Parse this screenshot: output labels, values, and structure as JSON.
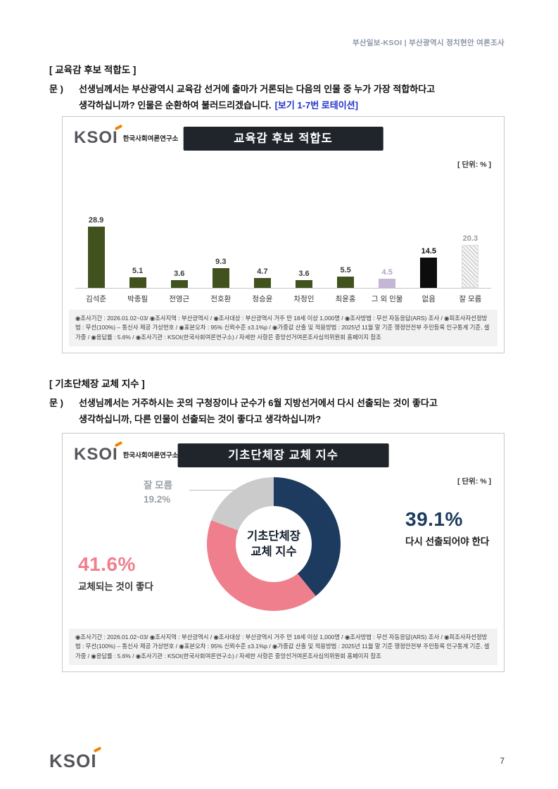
{
  "page": {
    "header": "부산일보-KSOI | 부산광역시 정치현안 여론조사",
    "brand": "KSOI",
    "brand_sub": "한국사회여론연구소",
    "page_number": "7"
  },
  "theme": {
    "bar_green": "#41521f",
    "bar_purple": "#c5b6d6",
    "bar_black": "#0d0d0d",
    "donut_navy": "#1c3b5e",
    "donut_pink": "#f07f8d",
    "donut_gray": "#cbcbcb",
    "accent_orange": "#f08300",
    "title_bar_bg": "#20242b",
    "note_blue": "#2233cc"
  },
  "section1": {
    "heading": "[ 교육감 후보 적합도 ]",
    "q_prefix": "문 )",
    "q_line1": "선생님께서는 부산광역시 교육감 선거에 출마가 거론되는 다음의 인물 중 누가 가장 적합하다고",
    "q_line2": "생각하십니까? 인물은 순환하여 불러드리겠습니다.",
    "q_note": "[보기 1-7번 로테이션]"
  },
  "section2": {
    "heading": "[ 기초단체장 교체 지수 ]",
    "q_prefix": "문 )",
    "q_line1": "선생님께서는 거주하시는 곳의 구청장이나 군수가 6월 지방선거에서 다시 선출되는 것이 좋다고",
    "q_line2": "생각하십니까, 다른 인물이 선출되는 것이 좋다고 생각하십니까?"
  },
  "survey_footnote": "◉조사기간 : 2026.01.02~03/ ◉조사지역 : 부산광역시 / ◉조사대상 : 부산광역시 거주 만 18세 이상 1,000명 / ◉조사방법 : 무선 자동응답(ARS) 조사 / ◉피조사자선정방법 : 무선(100%) – 통신사 제공 가상번호 / ◉표본오차 : 95% 신뢰수준 ±3.1%p / ◉가중값 산출 및 적용방법 : 2025년 11월 말 기준 행정안전부 주민등록 인구통계 기준, 셀가중 / ◉응답률 : 5.6% / ◉조사기관 : KSOI(한국사회여론연구소) / 자세한 사항은 중앙선거여론조사심의위원회 홈페이지 참조",
  "chart_data": [
    {
      "type": "bar",
      "title": "교육감 후보 적합도",
      "unit_label": "[ 단위: % ]",
      "categories": [
        "김석준",
        "박종필",
        "전영근",
        "전호환",
        "정승윤",
        "차정인",
        "최윤홍",
        "그 외 인물",
        "없음",
        "잘 모름"
      ],
      "values": [
        28.9,
        5.1,
        3.6,
        9.3,
        4.7,
        3.6,
        5.5,
        4.5,
        14.5,
        20.3
      ],
      "colors": [
        "#41521f",
        "#41521f",
        "#41521f",
        "#41521f",
        "#41521f",
        "#41521f",
        "#41521f",
        "#c5b6d6",
        "#0d0d0d",
        "hatch"
      ],
      "value_label_colors": [
        "#3a3a3a",
        "#3a3a3a",
        "#3a3a3a",
        "#3a3a3a",
        "#3a3a3a",
        "#3a3a3a",
        "#3a3a3a",
        "#b5a3c9",
        "#111111",
        "#9b9b9b"
      ],
      "ylim": [
        0,
        32
      ],
      "legend": "none",
      "grid": "off"
    },
    {
      "type": "donut",
      "title": "기초단체장 교체 지수",
      "unit_label": "[ 단위: % ]",
      "center_lines": [
        "기초단체장",
        "교체 지수"
      ],
      "segments": [
        {
          "label": "다시 선출되어야 한다",
          "value": 39.1,
          "color": "#1c3b5e"
        },
        {
          "label": "교체되는 것이 좋다",
          "value": 41.6,
          "color": "#f07f8d"
        },
        {
          "label": "잘 모름",
          "value": 19.2,
          "color": "#cbcbcb"
        }
      ]
    }
  ]
}
